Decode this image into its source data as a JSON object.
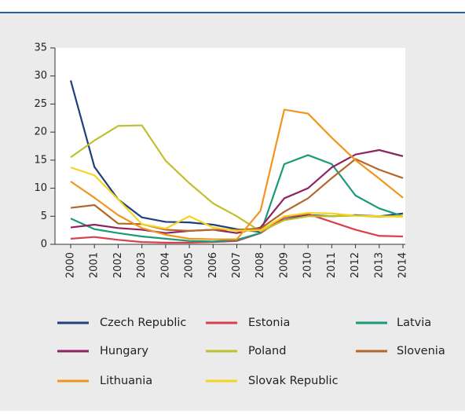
{
  "chart_data": {
    "type": "line",
    "categories": [
      "2000",
      "2001",
      "2002",
      "2003",
      "2004",
      "2005",
      "2006",
      "2007",
      "2008",
      "2009",
      "2010",
      "2011",
      "2012",
      "2013",
      "2014"
    ],
    "series": [
      {
        "name": "Czech Republic",
        "color": "#1f3f7e",
        "values": [
          29.2,
          13.8,
          8.0,
          4.8,
          4.0,
          3.9,
          3.5,
          2.7,
          2.2,
          4.4,
          5.2,
          5.0,
          5.2,
          5.0,
          5.5
        ]
      },
      {
        "name": "Estonia",
        "color": "#d8404f",
        "values": [
          1.0,
          1.3,
          0.8,
          0.4,
          0.3,
          0.3,
          0.4,
          0.6,
          2.0,
          4.8,
          5.4,
          4.0,
          2.6,
          1.5,
          1.4
        ]
      },
      {
        "name": "Latvia",
        "color": "#1a9a78",
        "values": [
          4.6,
          2.7,
          2.0,
          1.4,
          1.0,
          0.6,
          0.5,
          0.8,
          2.0,
          14.3,
          15.9,
          14.3,
          8.7,
          6.4,
          5.0
        ]
      },
      {
        "name": "Hungary",
        "color": "#8c2462",
        "values": [
          3.0,
          3.5,
          2.9,
          2.6,
          2.0,
          2.4,
          2.6,
          2.0,
          3.0,
          8.2,
          10.0,
          13.7,
          16.0,
          16.8,
          15.7
        ]
      },
      {
        "name": "Poland",
        "color": "#bfc02f",
        "values": [
          15.5,
          18.5,
          21.1,
          21.2,
          14.9,
          10.9,
          7.3,
          5.0,
          2.3,
          4.3,
          5.0,
          5.0,
          5.1,
          4.9,
          5.1
        ]
      },
      {
        "name": "Slovenia",
        "color": "#b5672b",
        "values": [
          6.5,
          7.0,
          3.7,
          3.6,
          2.6,
          2.4,
          2.6,
          2.6,
          2.8,
          5.8,
          8.2,
          11.8,
          15.2,
          13.3,
          11.8
        ]
      },
      {
        "name": "Lithuania",
        "color": "#f0961e",
        "values": [
          11.2,
          8.3,
          5.2,
          2.9,
          1.7,
          1.0,
          0.9,
          0.9,
          6.0,
          24.0,
          23.3,
          19.0,
          15.0,
          11.7,
          8.3
        ]
      },
      {
        "name": "Slovak Republic",
        "color": "#f6d51e",
        "values": [
          13.7,
          12.3,
          8.0,
          3.6,
          2.8,
          5.0,
          3.0,
          2.4,
          2.5,
          5.0,
          5.6,
          5.5,
          5.1,
          5.0,
          4.9
        ]
      }
    ],
    "ylim": [
      0,
      35
    ],
    "yticks": [
      0,
      5,
      10,
      15,
      20,
      25,
      30,
      35
    ],
    "grid": false
  }
}
